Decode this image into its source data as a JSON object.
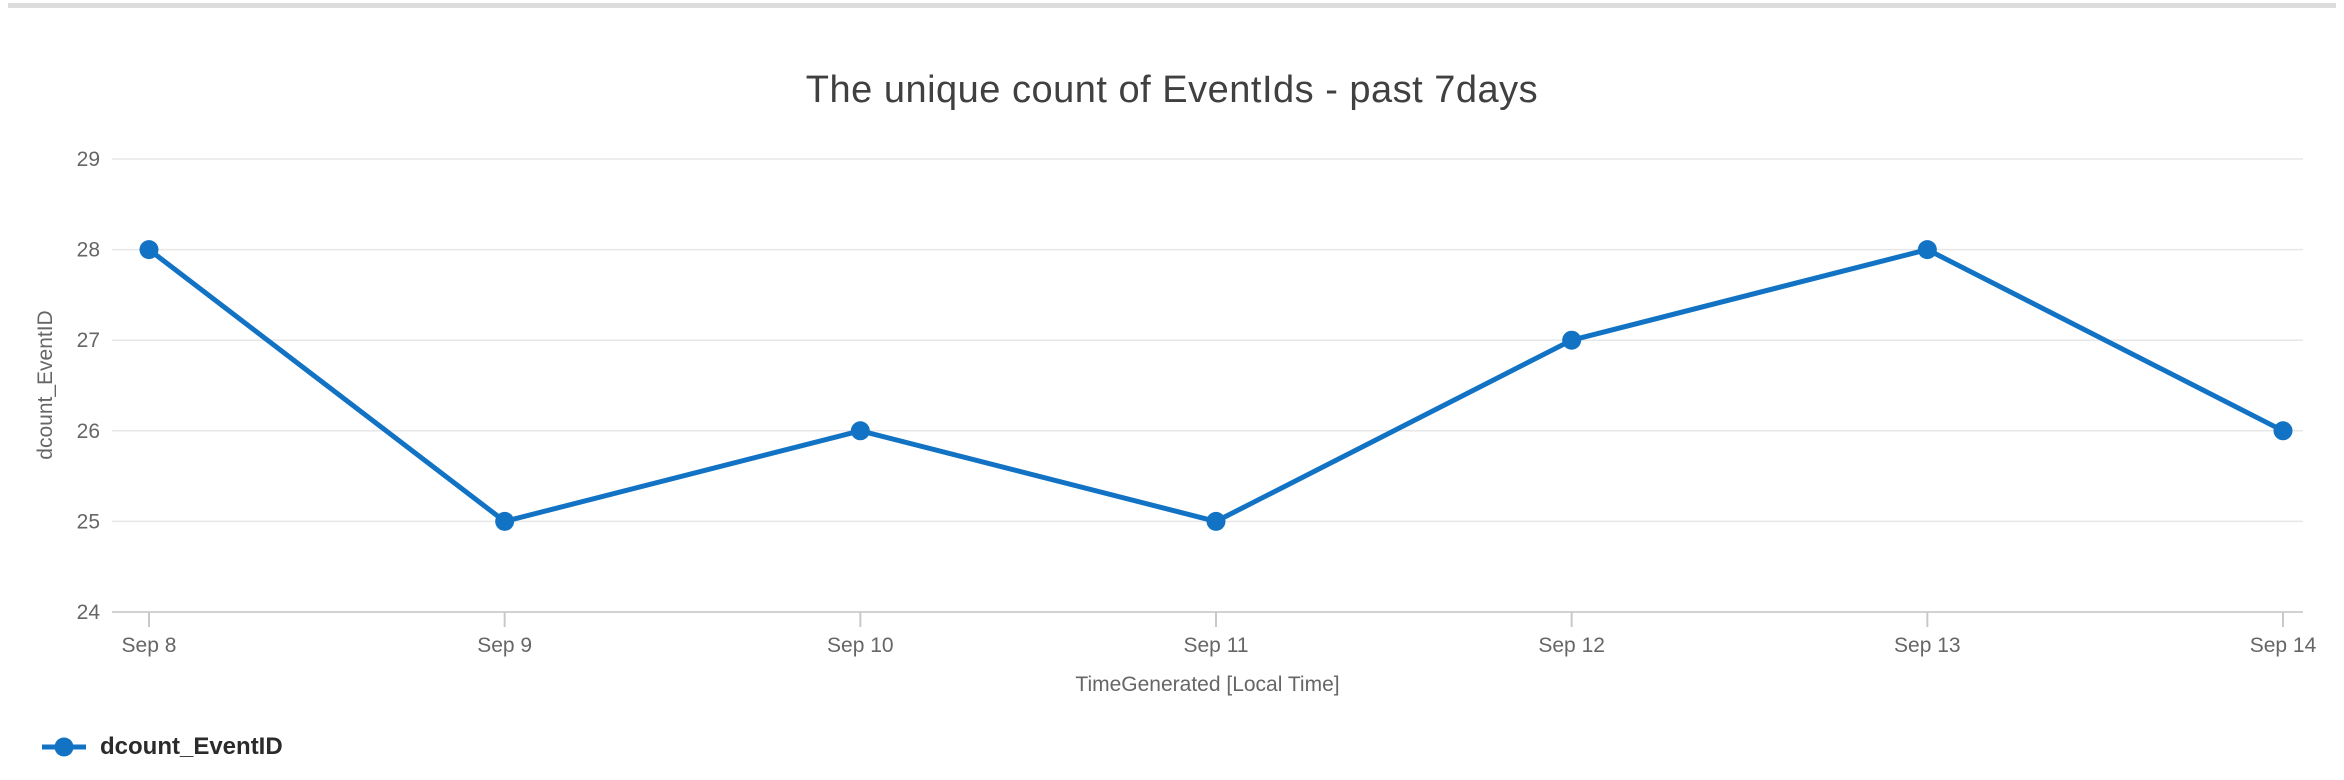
{
  "chart_data": {
    "type": "line",
    "title": "The unique count of EventIds - past 7days",
    "xlabel": "TimeGenerated [Local Time]",
    "ylabel": "dcount_EventID",
    "categories": [
      "Sep 8",
      "Sep 9",
      "Sep 10",
      "Sep 11",
      "Sep 12",
      "Sep 13",
      "Sep 14"
    ],
    "series": [
      {
        "name": "dcount_EventID",
        "color": "#1273C5",
        "values": [
          28,
          25,
          26,
          25,
          27,
          28,
          26
        ]
      }
    ],
    "ylim": [
      24,
      29
    ],
    "yticks": [
      24,
      25,
      26,
      27,
      28,
      29
    ],
    "grid": true,
    "legend_position": "bottom-left"
  }
}
